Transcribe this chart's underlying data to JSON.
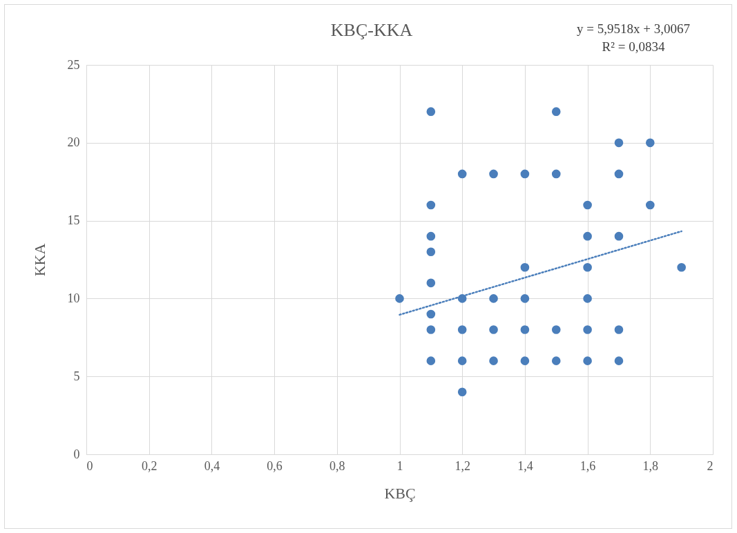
{
  "chart_data": {
    "type": "scatter",
    "title": "KBÇ-KKA",
    "xlabel": "KBÇ",
    "ylabel": "KKA",
    "annotations": [
      "y = 5,9518x + 3,0067",
      "R² = 0,0834"
    ],
    "series": [
      {
        "color": "#4a7ebb",
        "marker": "circle",
        "x": [
          1,
          1.1,
          1.1,
          1.1,
          1.1,
          1.1,
          1.1,
          1.1,
          1.1,
          1.2,
          1.2,
          1.2,
          1.2,
          1.2,
          1.3,
          1.3,
          1.3,
          1.3,
          1.4,
          1.4,
          1.4,
          1.4,
          1.4,
          1.5,
          1.5,
          1.5,
          1.5,
          1.6,
          1.6,
          1.6,
          1.6,
          1.6,
          1.6,
          1.7,
          1.7,
          1.7,
          1.7,
          1.7,
          1.8,
          1.8,
          1.9
        ],
        "values": [
          10,
          22,
          16,
          14,
          13,
          11,
          9,
          8,
          6,
          18,
          10,
          8,
          6,
          4,
          18,
          10,
          8,
          6,
          18,
          12,
          10,
          8,
          6,
          22,
          18,
          8,
          6,
          16,
          14,
          12,
          10,
          8,
          6,
          20,
          18,
          14,
          8,
          6,
          20,
          16,
          12
        ]
      },
      {
        "type": "line",
        "color": "#4a7ebb",
        "line_style": "dotted",
        "x": [
          1,
          1.9
        ],
        "values": [
          8.96,
          14.32
        ]
      }
    ],
    "xlim": [
      0,
      2
    ],
    "xticks": [
      0,
      {
        "value": 0.2,
        "label": "0,2"
      },
      {
        "value": 0.4,
        "label": "0,4"
      },
      {
        "value": 0.6,
        "label": "0,6"
      },
      {
        "value": 0.8,
        "label": "0,8"
      },
      1,
      {
        "value": 1.2,
        "label": "1,2"
      },
      {
        "value": 1.4,
        "label": "1,4"
      },
      {
        "value": 1.6,
        "label": "1,6"
      },
      {
        "value": 1.8,
        "label": "1,8"
      },
      2
    ],
    "ylim": [
      0,
      25
    ],
    "yticks": [
      0,
      5,
      10,
      15,
      20,
      25
    ],
    "grid": true
  }
}
